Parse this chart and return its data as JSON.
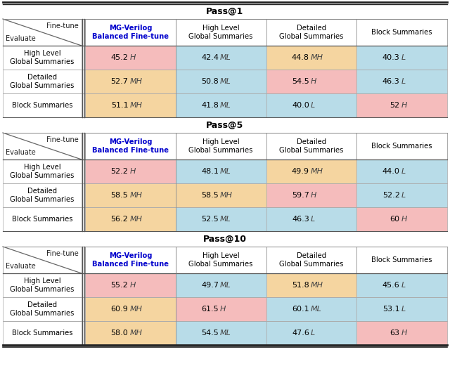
{
  "sections": [
    {
      "title": "Pass@1",
      "rows": [
        {
          "label": "High Level\nGlobal Summaries",
          "cells": [
            {
              "value": "45.2",
              "label": "H",
              "bg": "#f5bcbc"
            },
            {
              "value": "42.4",
              "label": "ML",
              "bg": "#b8dce8"
            },
            {
              "value": "44.8",
              "label": "MH",
              "bg": "#f5d5a0"
            },
            {
              "value": "40.3",
              "label": "L",
              "bg": "#b8dce8"
            }
          ]
        },
        {
          "label": "Detailed\nGlobal Summaries",
          "cells": [
            {
              "value": "52.7",
              "label": "MH",
              "bg": "#f5d5a0"
            },
            {
              "value": "50.8",
              "label": "ML",
              "bg": "#b8dce8"
            },
            {
              "value": "54.5",
              "label": "H",
              "bg": "#f5bcbc"
            },
            {
              "value": "46.3",
              "label": "L",
              "bg": "#b8dce8"
            }
          ]
        },
        {
          "label": "Block Summaries",
          "cells": [
            {
              "value": "51.1",
              "label": "MH",
              "bg": "#f5d5a0"
            },
            {
              "value": "41.8",
              "label": "ML",
              "bg": "#b8dce8"
            },
            {
              "value": "40.0",
              "label": "L",
              "bg": "#b8dce8"
            },
            {
              "value": "52",
              "label": "H",
              "bg": "#f5bcbc"
            }
          ]
        }
      ]
    },
    {
      "title": "Pass@5",
      "rows": [
        {
          "label": "High Level\nGlobal Summaries",
          "cells": [
            {
              "value": "52.2",
              "label": "H",
              "bg": "#f5bcbc"
            },
            {
              "value": "48.1",
              "label": "ML",
              "bg": "#b8dce8"
            },
            {
              "value": "49.9",
              "label": "MH",
              "bg": "#f5d5a0"
            },
            {
              "value": "44.0",
              "label": "L",
              "bg": "#b8dce8"
            }
          ]
        },
        {
          "label": "Detailed\nGlobal Summaries",
          "cells": [
            {
              "value": "58.5",
              "label": "MH",
              "bg": "#f5d5a0"
            },
            {
              "value": "58.5",
              "label": "MH",
              "bg": "#f5d5a0"
            },
            {
              "value": "59.7",
              "label": "H",
              "bg": "#f5bcbc"
            },
            {
              "value": "52.2",
              "label": "L",
              "bg": "#b8dce8"
            }
          ]
        },
        {
          "label": "Block Summaries",
          "cells": [
            {
              "value": "56.2",
              "label": "MH",
              "bg": "#f5d5a0"
            },
            {
              "value": "52.5",
              "label": "ML",
              "bg": "#b8dce8"
            },
            {
              "value": "46.3",
              "label": "L",
              "bg": "#b8dce8"
            },
            {
              "value": "60",
              "label": "H",
              "bg": "#f5bcbc"
            }
          ]
        }
      ]
    },
    {
      "title": "Pass@10",
      "rows": [
        {
          "label": "High Level\nGlobal Summaries",
          "cells": [
            {
              "value": "55.2",
              "label": "H",
              "bg": "#f5bcbc"
            },
            {
              "value": "49.7",
              "label": "ML",
              "bg": "#b8dce8"
            },
            {
              "value": "51.8",
              "label": "MH",
              "bg": "#f5d5a0"
            },
            {
              "value": "45.6",
              "label": "L",
              "bg": "#b8dce8"
            }
          ]
        },
        {
          "label": "Detailed\nGlobal Summaries",
          "cells": [
            {
              "value": "60.9",
              "label": "MH",
              "bg": "#f5d5a0"
            },
            {
              "value": "61.5",
              "label": "H",
              "bg": "#f5bcbc"
            },
            {
              "value": "60.1",
              "label": "ML",
              "bg": "#b8dce8"
            },
            {
              "value": "53.1",
              "label": "L",
              "bg": "#b8dce8"
            }
          ]
        },
        {
          "label": "Block Summaries",
          "cells": [
            {
              "value": "58.0",
              "label": "MH",
              "bg": "#f5d5a0"
            },
            {
              "value": "54.5",
              "label": "ML",
              "bg": "#b8dce8"
            },
            {
              "value": "47.6",
              "label": "L",
              "bg": "#b8dce8"
            },
            {
              "value": "63",
              "label": "H",
              "bg": "#f5bcbc"
            }
          ]
        }
      ]
    }
  ],
  "col_headers": [
    "MG-Verilog\nBalanced Fine-tune",
    "High Level\nGlobal Summaries",
    "Detailed\nGlobal Summaries",
    "Block Summaries"
  ],
  "mg_verilog_color": "#0000cc",
  "text_color": "#000000",
  "figure_bg": "#ffffff"
}
